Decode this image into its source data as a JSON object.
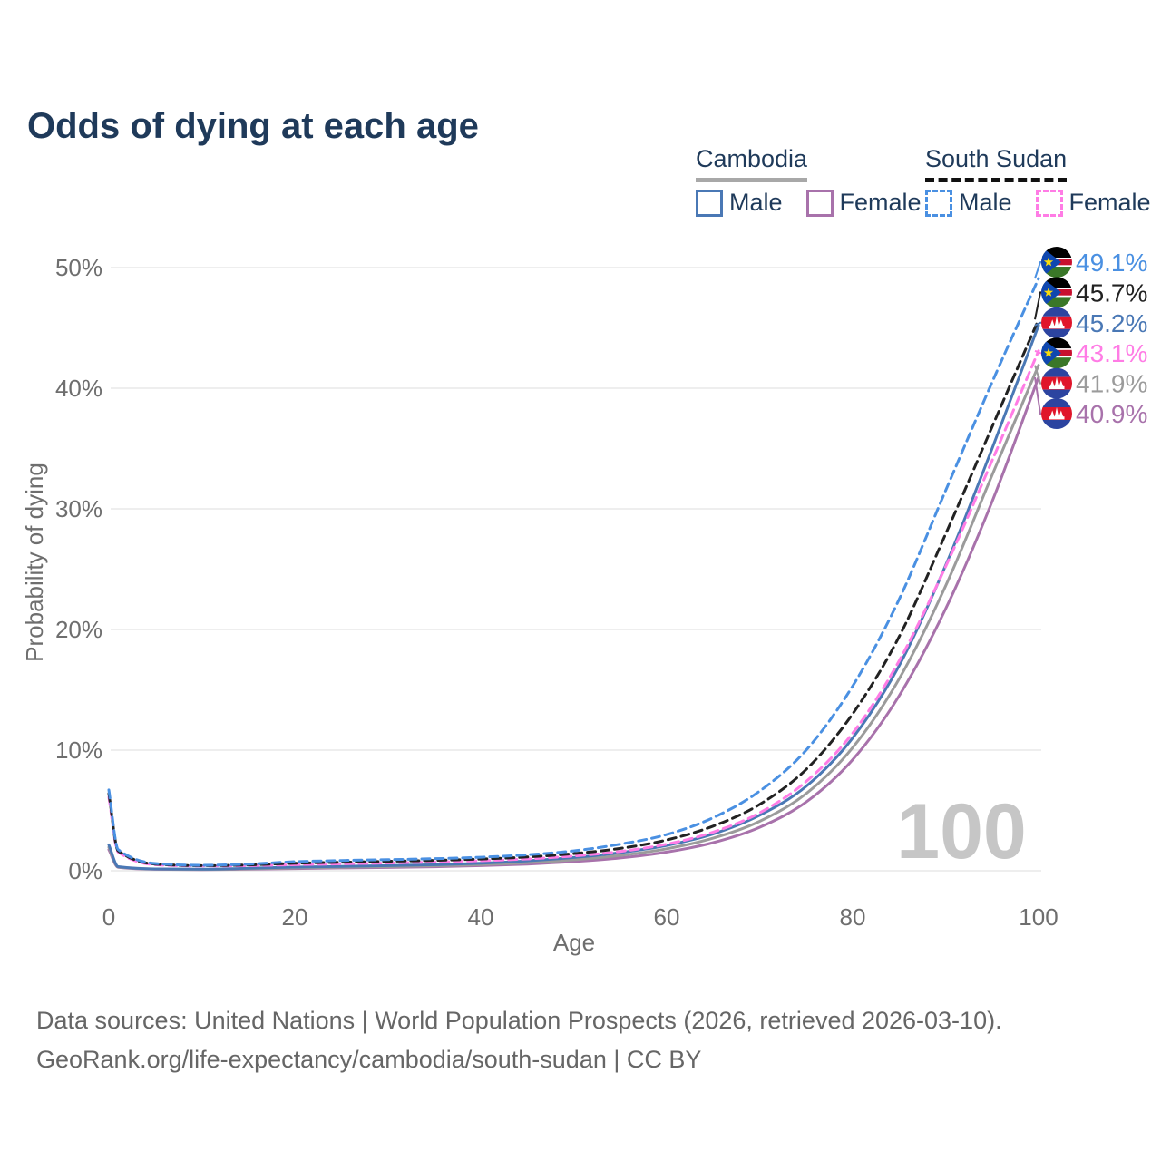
{
  "title": "Odds of dying at each age",
  "legend": {
    "groups": [
      {
        "label": "Cambodia",
        "line_style": "solid",
        "underline_color": "#a8a8a8",
        "items": [
          {
            "label": "Male",
            "color": "#4a78b5"
          },
          {
            "label": "Female",
            "color": "#a872ab"
          }
        ]
      },
      {
        "label": "South Sudan",
        "line_style": "dashed",
        "underline_color": "#111111",
        "items": [
          {
            "label": "Male",
            "color": "#4a90e2"
          },
          {
            "label": "Female",
            "color": "#ff7ce5"
          }
        ]
      }
    ]
  },
  "watermark": "100",
  "annotations": {
    "end_labels": [
      {
        "text": "49.1%",
        "series": "South Sudan Male",
        "flag": "south-sudan",
        "color": "#4a90e2"
      },
      {
        "text": "45.7%",
        "series": "South Sudan Both sexes",
        "flag": "south-sudan",
        "color": "#222222"
      },
      {
        "text": "45.2%",
        "series": "Cambodia Male",
        "flag": "cambodia",
        "color": "#4a78b5"
      },
      {
        "text": "43.1%",
        "series": "South Sudan Female",
        "flag": "south-sudan",
        "color": "#ff7ce5"
      },
      {
        "text": "41.9%",
        "series": "Cambodia Both sexes",
        "flag": "cambodia",
        "color": "#9b9b9b"
      },
      {
        "text": "40.9%",
        "series": "Cambodia Female",
        "flag": "cambodia",
        "color": "#a872ab"
      }
    ]
  },
  "footer": {
    "line1": "Data sources: United Nations | World Population Prospects (2026, retrieved 2026-03-10).",
    "line2": "GeoRank.org/life-expectancy/cambodia/south-sudan | CC BY"
  },
  "chart_data": {
    "type": "line",
    "title": "Odds of dying at each age",
    "xlabel": "Age",
    "ylabel": "Probability of dying",
    "xlim": [
      0,
      100
    ],
    "ylim": [
      0,
      50
    ],
    "x_ticks": [
      0,
      20,
      40,
      60,
      80,
      100
    ],
    "y_ticks": [
      {
        "v": 0,
        "label": "0%"
      },
      {
        "v": 10,
        "label": "10%"
      },
      {
        "v": 20,
        "label": "20%"
      },
      {
        "v": 30,
        "label": "30%"
      },
      {
        "v": 40,
        "label": "40%"
      },
      {
        "v": 50,
        "label": "50%"
      }
    ],
    "grid": "horizontal",
    "unit": "%",
    "x": [
      0,
      1,
      5,
      10,
      15,
      20,
      25,
      30,
      35,
      40,
      45,
      50,
      55,
      60,
      65,
      70,
      75,
      80,
      85,
      90,
      95,
      100
    ],
    "series": [
      {
        "name": "Cambodia Female",
        "country": "Cambodia",
        "sex": "Female",
        "color": "#a872ab",
        "dash": "solid",
        "end_label": "40.9%",
        "values": [
          1.75,
          0.28,
          0.12,
          0.1,
          0.13,
          0.18,
          0.23,
          0.27,
          0.33,
          0.42,
          0.55,
          0.76,
          1.06,
          1.55,
          2.33,
          3.6,
          5.7,
          9.2,
          14.5,
          21.7,
          30.6,
          40.9
        ]
      },
      {
        "name": "Cambodia Both sexes",
        "country": "Cambodia",
        "sex": "Both sexes",
        "color": "#9b9b9b",
        "dash": "solid",
        "end_label": "41.9%",
        "values": [
          1.95,
          0.31,
          0.14,
          0.11,
          0.16,
          0.24,
          0.29,
          0.34,
          0.41,
          0.51,
          0.67,
          0.91,
          1.27,
          1.82,
          2.7,
          4.1,
          6.4,
          10.2,
          15.9,
          23.6,
          32.8,
          41.9
        ]
      },
      {
        "name": "Cambodia Male",
        "country": "Cambodia",
        "sex": "Male",
        "color": "#4a78b5",
        "dash": "solid",
        "end_label": "45.2%",
        "values": [
          2.15,
          0.34,
          0.15,
          0.13,
          0.2,
          0.3,
          0.36,
          0.42,
          0.5,
          0.62,
          0.82,
          1.1,
          1.5,
          2.1,
          3.05,
          4.6,
          7.0,
          11.0,
          17.0,
          25.3,
          35.0,
          45.2
        ]
      },
      {
        "name": "South Sudan Female",
        "country": "South Sudan",
        "sex": "Female",
        "color": "#ff7ce5",
        "dash": "dashed",
        "end_label": "43.1%",
        "values": [
          6.1,
          1.55,
          0.5,
          0.39,
          0.42,
          0.5,
          0.57,
          0.64,
          0.72,
          0.83,
          0.98,
          1.22,
          1.6,
          2.2,
          3.2,
          4.8,
          7.4,
          11.4,
          17.4,
          25.2,
          34.0,
          43.1
        ]
      },
      {
        "name": "South Sudan Both sexes",
        "country": "South Sudan",
        "sex": "Both sexes",
        "color": "#222222",
        "dash": "dashed",
        "end_label": "45.7%",
        "values": [
          6.4,
          1.65,
          0.55,
          0.42,
          0.48,
          0.62,
          0.7,
          0.78,
          0.86,
          0.97,
          1.14,
          1.42,
          1.85,
          2.55,
          3.7,
          5.5,
          8.4,
          13.0,
          19.4,
          27.9,
          36.8,
          45.7
        ]
      },
      {
        "name": "South Sudan Male",
        "country": "South Sudan",
        "sex": "Male",
        "color": "#4a90e2",
        "dash": "dashed",
        "end_label": "49.1%",
        "values": [
          6.7,
          1.75,
          0.6,
          0.45,
          0.55,
          0.75,
          0.85,
          0.92,
          1.0,
          1.12,
          1.32,
          1.65,
          2.2,
          3.0,
          4.4,
          6.6,
          10.0,
          15.3,
          22.5,
          31.5,
          40.5,
          49.1
        ]
      }
    ]
  }
}
